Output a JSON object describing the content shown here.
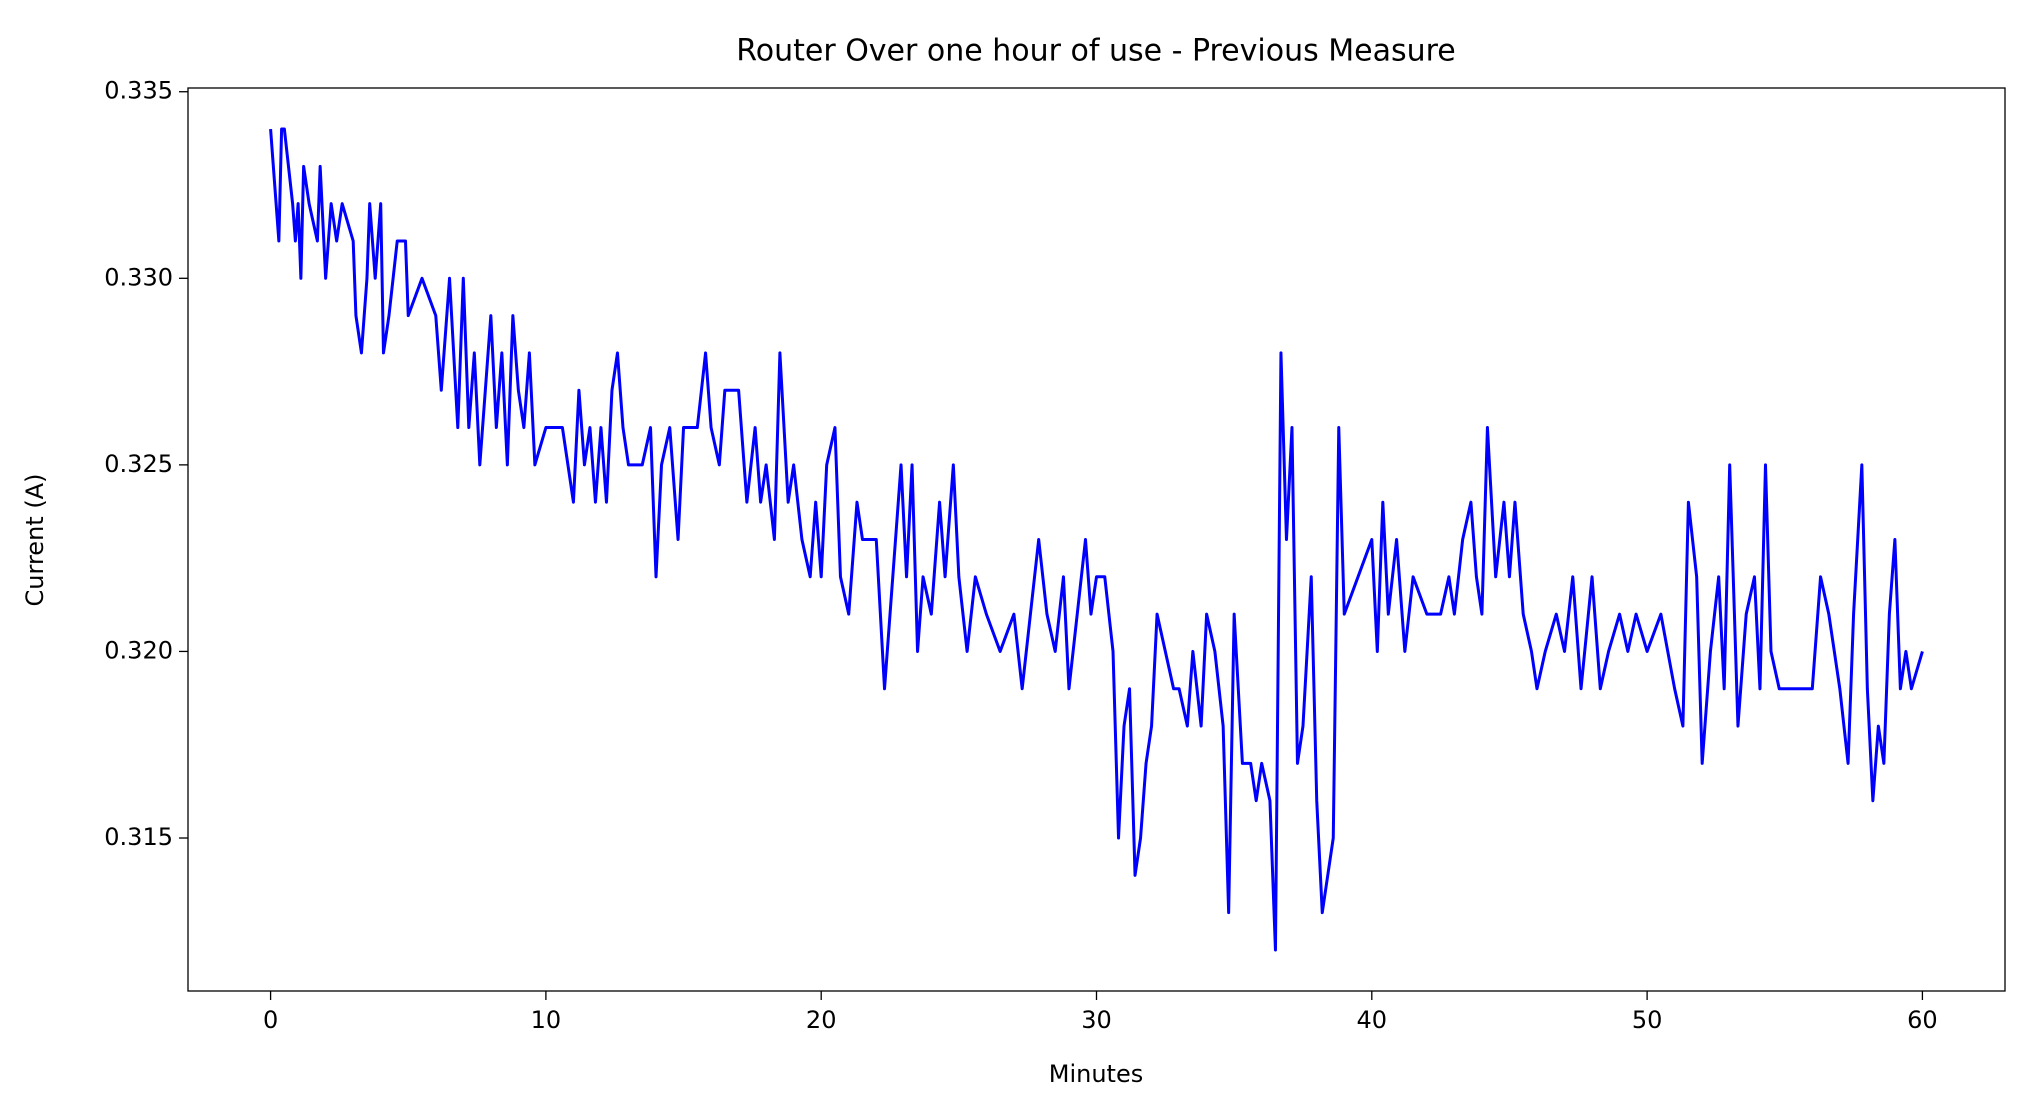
{
  "chart_data": {
    "type": "line",
    "title": "Router Over one hour of use -  Previous Measure",
    "xlabel": "Minutes",
    "ylabel": "Current (A)",
    "color": "#0000ff",
    "grid": false,
    "xlim": [
      -3,
      63
    ],
    "ylim": [
      0.3109,
      0.3351
    ],
    "xticks": [
      0,
      10,
      20,
      30,
      40,
      50,
      60
    ],
    "yticks": [
      0.315,
      {
        "value": 0.32,
        "label": "0.320"
      },
      0.325,
      {
        "value": 0.33,
        "label": "0.330"
      },
      0.335
    ],
    "x": [
      0,
      0.1,
      0.2,
      0.3,
      0.4,
      0.5,
      0.8,
      0.9,
      1.0,
      1.1,
      1.2,
      1.4,
      1.7,
      1.8,
      2.0,
      2.2,
      2.4,
      2.6,
      3.0,
      3.1,
      3.3,
      3.5,
      3.6,
      3.8,
      4.0,
      4.1,
      4.3,
      4.6,
      4.9,
      5.0,
      5.5,
      6.0,
      6.2,
      6.5,
      6.8,
      7.0,
      7.2,
      7.4,
      7.6,
      7.8,
      8.0,
      8.2,
      8.4,
      8.6,
      8.8,
      9.0,
      9.2,
      9.4,
      9.6,
      10.0,
      10.6,
      10.8,
      11.0,
      11.2,
      11.4,
      11.6,
      11.8,
      12.0,
      12.2,
      12.4,
      12.6,
      12.8,
      13.0,
      13.5,
      13.8,
      14.0,
      14.2,
      14.5,
      14.8,
      15.0,
      15.5,
      15.8,
      16.0,
      16.3,
      16.5,
      17.0,
      17.3,
      17.6,
      17.8,
      18.0,
      18.3,
      18.5,
      18.8,
      19.0,
      19.3,
      19.6,
      19.8,
      20.0,
      20.2,
      20.5,
      20.7,
      21.0,
      21.3,
      21.5,
      22.0,
      22.3,
      22.6,
      22.9,
      23.1,
      23.3,
      23.5,
      23.7,
      24.0,
      24.3,
      24.5,
      24.8,
      25.0,
      25.3,
      25.6,
      26.0,
      26.5,
      27.0,
      27.3,
      27.6,
      27.9,
      28.2,
      28.5,
      28.8,
      29.0,
      29.3,
      29.6,
      29.8,
      30.0,
      30.3,
      30.6,
      30.8,
      31.0,
      31.2,
      31.4,
      31.6,
      31.8,
      32.0,
      32.2,
      32.5,
      32.8,
      33.0,
      33.3,
      33.5,
      33.8,
      34.0,
      34.3,
      34.6,
      34.8,
      35.0,
      35.3,
      35.6,
      35.8,
      36.0,
      36.3,
      36.5,
      36.7,
      36.9,
      37.1,
      37.3,
      37.5,
      37.8,
      38.0,
      38.2,
      38.4,
      38.6,
      38.8,
      39.0,
      39.5,
      40.0,
      40.2,
      40.4,
      40.6,
      40.9,
      41.2,
      41.5,
      42.0,
      42.5,
      42.8,
      43.0,
      43.3,
      43.6,
      43.8,
      44.0,
      44.2,
      44.5,
      44.8,
      45.0,
      45.2,
      45.5,
      45.8,
      46.0,
      46.3,
      46.7,
      47.0,
      47.3,
      47.6,
      48.0,
      48.3,
      48.6,
      49.0,
      49.3,
      49.6,
      50.0,
      50.5,
      51.0,
      51.3,
      51.5,
      51.8,
      52.0,
      52.3,
      52.6,
      52.8,
      53.0,
      53.3,
      53.6,
      53.9,
      54.1,
      54.3,
      54.5,
      54.8,
      55.2,
      56.0,
      56.3,
      56.6,
      57.0,
      57.3,
      57.5,
      57.8,
      58.0,
      58.2,
      58.4,
      58.6,
      58.8,
      59.0,
      59.2,
      59.4,
      59.6,
      60.0
    ],
    "values": [
      0.334,
      0.333,
      0.332,
      0.331,
      0.334,
      0.334,
      0.332,
      0.331,
      0.332,
      0.33,
      0.333,
      0.332,
      0.331,
      0.333,
      0.33,
      0.332,
      0.331,
      0.332,
      0.331,
      0.329,
      0.328,
      0.33,
      0.332,
      0.33,
      0.332,
      0.328,
      0.329,
      0.331,
      0.331,
      0.329,
      0.33,
      0.329,
      0.327,
      0.33,
      0.326,
      0.33,
      0.326,
      0.328,
      0.325,
      0.327,
      0.329,
      0.326,
      0.328,
      0.325,
      0.329,
      0.327,
      0.326,
      0.328,
      0.325,
      0.326,
      0.326,
      0.325,
      0.324,
      0.327,
      0.325,
      0.326,
      0.324,
      0.326,
      0.324,
      0.327,
      0.328,
      0.326,
      0.325,
      0.325,
      0.326,
      0.322,
      0.325,
      0.326,
      0.323,
      0.326,
      0.326,
      0.328,
      0.326,
      0.325,
      0.327,
      0.327,
      0.324,
      0.326,
      0.324,
      0.325,
      0.323,
      0.328,
      0.324,
      0.325,
      0.323,
      0.322,
      0.324,
      0.322,
      0.325,
      0.326,
      0.322,
      0.321,
      0.324,
      0.323,
      0.323,
      0.319,
      0.322,
      0.325,
      0.322,
      0.325,
      0.32,
      0.322,
      0.321,
      0.324,
      0.322,
      0.325,
      0.322,
      0.32,
      0.322,
      0.321,
      0.32,
      0.321,
      0.319,
      0.321,
      0.323,
      0.321,
      0.32,
      0.322,
      0.319,
      0.321,
      0.323,
      0.321,
      0.322,
      0.322,
      0.32,
      0.315,
      0.318,
      0.319,
      0.314,
      0.315,
      0.317,
      0.318,
      0.321,
      0.32,
      0.319,
      0.319,
      0.318,
      0.32,
      0.318,
      0.321,
      0.32,
      0.318,
      0.313,
      0.321,
      0.317,
      0.317,
      0.316,
      0.317,
      0.316,
      0.312,
      0.328,
      0.323,
      0.326,
      0.317,
      0.318,
      0.322,
      0.316,
      0.313,
      0.314,
      0.315,
      0.326,
      0.321,
      0.322,
      0.323,
      0.32,
      0.324,
      0.321,
      0.323,
      0.32,
      0.322,
      0.321,
      0.321,
      0.322,
      0.321,
      0.323,
      0.324,
      0.322,
      0.321,
      0.326,
      0.322,
      0.324,
      0.322,
      0.324,
      0.321,
      0.32,
      0.319,
      0.32,
      0.321,
      0.32,
      0.322,
      0.319,
      0.322,
      0.319,
      0.32,
      0.321,
      0.32,
      0.321,
      0.32,
      0.321,
      0.319,
      0.318,
      0.324,
      0.322,
      0.317,
      0.32,
      0.322,
      0.319,
      0.325,
      0.318,
      0.321,
      0.322,
      0.319,
      0.325,
      0.32,
      0.319,
      0.319,
      0.319,
      0.322,
      0.321,
      0.319,
      0.317,
      0.321,
      0.325,
      0.319,
      0.316,
      0.318,
      0.317,
      0.321,
      0.323,
      0.319,
      0.32,
      0.319,
      0.32
    ]
  }
}
